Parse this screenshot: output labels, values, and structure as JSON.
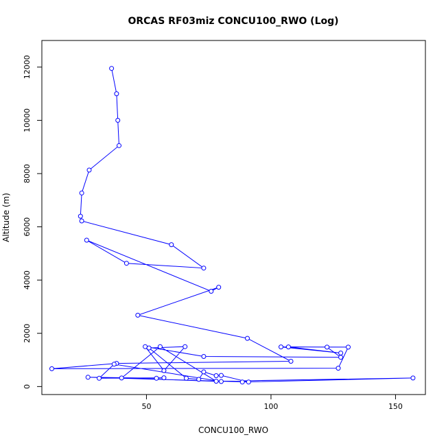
{
  "chart_data": {
    "type": "line",
    "title": "ORCAS RF03miz CONCU100_RWO (Log)",
    "xlabel": "CONCU100_RWO",
    "ylabel": "Altitude (m)",
    "xlim": [
      8,
      162
    ],
    "ylim": [
      -300,
      13000
    ],
    "xticks": [
      50,
      100,
      150
    ],
    "yticks": [
      0,
      2000,
      4000,
      6000,
      8000,
      10000,
      12000
    ],
    "grid": false,
    "legend": "none",
    "marker": "open-circle",
    "line_color": "#0000ff",
    "series": [
      {
        "points": [
          [
            36,
            11950
          ],
          [
            38,
            11000
          ],
          [
            38.5,
            10000
          ],
          [
            39,
            9050
          ],
          [
            27,
            8130
          ],
          [
            24,
            7270
          ],
          [
            23.5,
            6400
          ],
          [
            24,
            6220
          ],
          [
            60,
            5330
          ],
          [
            73,
            4450
          ],
          [
            42,
            4630
          ],
          [
            26,
            5500
          ],
          [
            76,
            3580
          ],
          [
            79,
            3730
          ],
          [
            46.5,
            2680
          ],
          [
            90.5,
            1810
          ],
          [
            108,
            950
          ],
          [
            38,
            870
          ],
          [
            12,
            670
          ],
          [
            127,
            690
          ],
          [
            131,
            1480
          ],
          [
            104,
            1490
          ],
          [
            128,
            1260
          ],
          [
            107,
            1490
          ],
          [
            122.5,
            1480
          ],
          [
            128,
            1100
          ],
          [
            73,
            1130
          ],
          [
            49.5,
            1500
          ],
          [
            57,
            600
          ],
          [
            65.5,
            1500
          ],
          [
            51,
            1450
          ],
          [
            66,
            310
          ],
          [
            71,
            270
          ],
          [
            73,
            550
          ],
          [
            78,
            410
          ],
          [
            80,
            420
          ],
          [
            91,
            170
          ],
          [
            26.5,
            350
          ],
          [
            54,
            310
          ],
          [
            57,
            330
          ],
          [
            31,
            310
          ],
          [
            37,
            840
          ],
          [
            80,
            190
          ],
          [
            40,
            320
          ],
          [
            55.5,
            1500
          ],
          [
            78,
            200
          ],
          [
            157,
            320
          ],
          [
            88.5,
            170
          ]
        ]
      }
    ]
  }
}
